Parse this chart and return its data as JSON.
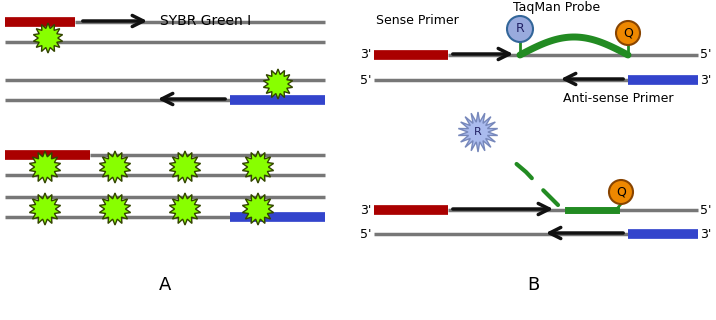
{
  "bg_color": "#ffffff",
  "title_A": "A",
  "title_B": "B",
  "label_sybr": "SYBR Green I",
  "label_sense": "Sense Primer",
  "label_antisense": "Anti-sense Primer",
  "label_taqman": "TaqMan Probe",
  "label_R": "R",
  "label_Q": "Q",
  "color_red": "#aa0000",
  "color_blue": "#3344cc",
  "color_green_dna": "#228B22",
  "color_gray": "#777777",
  "color_lime": "#88ff00",
  "color_lime_dark": "#336600",
  "color_arrow": "#111111",
  "color_R_fill": "#99aadd",
  "color_Q_fill": "#ee8800",
  "color_burst_fill": "#aabbee",
  "color_burst_edge": "#7788bb"
}
